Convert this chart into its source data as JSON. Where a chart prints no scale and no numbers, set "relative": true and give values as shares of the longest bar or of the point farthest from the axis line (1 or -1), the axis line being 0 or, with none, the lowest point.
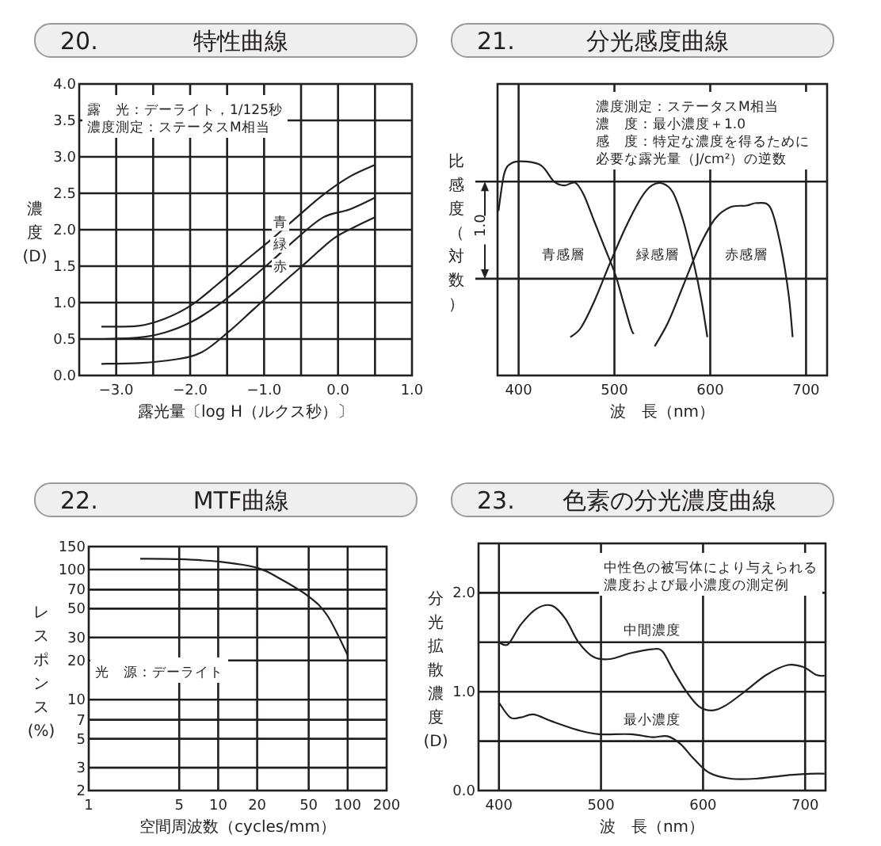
{
  "chart_data": [
    {
      "type": "line",
      "title": "20.　　　　特性曲線",
      "xlabel": "露光量〔log H（ルクス秒）〕",
      "ylabel": "濃度(D)",
      "xlim": [
        -3.5,
        1.0
      ],
      "xticks": [
        {
          "value": -3,
          "label": "−3.0"
        },
        {
          "value": -2.5,
          "label": null
        },
        {
          "value": -2,
          "label": "−2.0"
        },
        {
          "value": -1.5,
          "label": null
        },
        {
          "value": -1,
          "label": "−1.0"
        },
        {
          "value": -0.5,
          "label": null
        },
        {
          "value": 0,
          "label": "0.0"
        },
        {
          "value": 0.5,
          "label": null
        },
        {
          "value": 1,
          "label": "1.0"
        }
      ],
      "ylim": [
        0,
        4
      ],
      "yticks": [
        {
          "value": 0,
          "label": "0.0"
        },
        0.5,
        {
          "value": 1,
          "label": "1.0"
        },
        1.5,
        {
          "value": 2,
          "label": "2.0"
        },
        2.5,
        {
          "value": 3,
          "label": "3.0"
        },
        3.5,
        {
          "value": 4,
          "label": "4.0"
        }
      ],
      "grid": true,
      "annotations": [
        "露　光：デーライト，1/125秒",
        "濃度測定：ステータスM相当"
      ],
      "series": [
        {
          "name": "青",
          "color": "#231f20",
          "x": [
            -3.2,
            -2.7,
            -2.34,
            -1.99,
            -1.63,
            -1.27,
            -0.91,
            -0.56,
            -0.2,
            0.16,
            0.5
          ],
          "values": [
            0.67,
            0.68,
            0.78,
            0.96,
            1.25,
            1.56,
            1.86,
            2.17,
            2.48,
            2.73,
            2.89
          ]
        },
        {
          "name": "緑",
          "color": "#231f20",
          "x": [
            -3.2,
            -2.7,
            -2.34,
            -1.99,
            -1.63,
            -1.27,
            -0.91,
            -0.56,
            -0.2,
            0.16,
            0.5
          ],
          "values": [
            0.5,
            0.52,
            0.59,
            0.73,
            0.96,
            1.25,
            1.56,
            1.88,
            2.17,
            2.28,
            2.44
          ]
        },
        {
          "name": "赤",
          "color": "#231f20",
          "x": [
            -3.2,
            -2.7,
            -2.2,
            -1.84,
            -1.49,
            -1.13,
            -0.77,
            -0.41,
            -0.06,
            0.23,
            0.5
          ],
          "values": [
            0.16,
            0.17,
            0.22,
            0.32,
            0.59,
            0.92,
            1.25,
            1.57,
            1.88,
            2.04,
            2.17
          ]
        }
      ]
    },
    {
      "type": "line",
      "title": "21.　　　分光感度曲線",
      "xlabel": "波　長（nm）",
      "ylabel": "比感度（対数）",
      "relative": true,
      "xlim": [
        378,
        722
      ],
      "xticks": [
        400,
        500,
        600,
        700
      ],
      "grid": "x",
      "ref_lines": [
        {
          "axis": "y",
          "value": 0.452
        },
        {
          "axis": "y",
          "value": 0.906
        }
      ],
      "annotations": [
        "濃度測定：ステータスM相当",
        "濃　度：最小濃度＋1.0",
        "感　度：特定な濃度を得るために必要な露光量（J/cm²）の逆数",
        "1.0"
      ],
      "series": [
        {
          "name": "青感層",
          "color": "#231f20",
          "x": [
            379,
            385,
            393,
            407,
            424,
            437,
            448,
            459,
            468,
            479,
            490,
            501,
            509,
            517,
            520
          ],
          "values": [
            0.769,
            0.943,
            0.993,
            1.0,
            0.98,
            0.906,
            0.888,
            0.901,
            0.844,
            0.72,
            0.596,
            0.471,
            0.347,
            0.223,
            0.194
          ]
        },
        {
          "name": "緑感層",
          "color": "#231f20",
          "x": [
            454,
            465,
            479,
            495,
            512,
            528,
            539,
            550,
            561,
            572,
            583,
            591,
            597
          ],
          "values": [
            0.179,
            0.223,
            0.347,
            0.521,
            0.695,
            0.831,
            0.888,
            0.898,
            0.856,
            0.72,
            0.521,
            0.347,
            0.179
          ]
        },
        {
          "name": "赤感層",
          "color": "#231f20",
          "x": [
            542,
            556,
            572,
            588,
            605,
            621,
            638,
            649,
            663,
            674,
            682,
            686
          ],
          "values": [
            0.136,
            0.248,
            0.422,
            0.596,
            0.732,
            0.787,
            0.794,
            0.806,
            0.782,
            0.596,
            0.372,
            0.179
          ]
        }
      ]
    },
    {
      "type": "line",
      "title": "22.　　　　MTF曲線",
      "xlabel": "空間周波数（cycles/mm）",
      "ylabel": "レスポンス(%)",
      "log": "xy",
      "xlim": [
        1,
        200
      ],
      "xticks": [
        1,
        5,
        10,
        20,
        50,
        100,
        200
      ],
      "ylim": [
        2,
        150
      ],
      "yticks": [
        2,
        3,
        5,
        7,
        10,
        20,
        30,
        50,
        70,
        100,
        150
      ],
      "grid": true,
      "annotations": [
        "光　源：デーライト"
      ],
      "series": [
        {
          "color": "#231f20",
          "x": [
            2.5,
            5,
            10,
            20,
            30,
            50,
            70,
            100
          ],
          "values": [
            121,
            120,
            115,
            103,
            85,
            62,
            44,
            22
          ]
        }
      ]
    },
    {
      "type": "line",
      "title": "23.　　色素の分光濃度曲線",
      "xlabel": "波　長（nm）",
      "ylabel": "分光拡散濃度(D)",
      "xlim": [
        380,
        720
      ],
      "xticks": [
        400,
        500,
        600,
        700
      ],
      "ylim": [
        0,
        2.5
      ],
      "yticks": [
        {
          "value": 0,
          "label": "0.0"
        },
        {
          "value": 0.5,
          "label": null
        },
        {
          "value": 1,
          "label": "1.0"
        },
        {
          "value": 1.5,
          "label": null
        },
        {
          "value": 2,
          "label": "2.0"
        }
      ],
      "grid": true,
      "annotations": [
        "中性色の被写体により与えられる濃度および最小濃度の測定例"
      ],
      "series": [
        {
          "name": "中間濃度",
          "color": "#231f20",
          "x": [
            400,
            409,
            421.5,
            437,
            452,
            465,
            478,
            493,
            509,
            529,
            550,
            560,
            570,
            583,
            596,
            609,
            622,
            642,
            662,
            683,
            698,
            711,
            719
          ],
          "values": [
            1.5,
            1.48,
            1.68,
            1.84,
            1.87,
            1.74,
            1.5,
            1.35,
            1.33,
            1.39,
            1.43,
            1.41,
            1.23,
            1.01,
            0.85,
            0.81,
            0.86,
            1.01,
            1.17,
            1.27,
            1.25,
            1.17,
            1.16
          ]
        },
        {
          "name": "最小濃度",
          "color": "#231f20",
          "x": [
            400,
            411,
            421.5,
            434,
            452,
            478,
            498,
            529,
            550,
            565,
            578,
            591,
            606,
            627,
            652,
            678,
            704,
            719
          ],
          "values": [
            0.89,
            0.74,
            0.74,
            0.77,
            0.7,
            0.61,
            0.57,
            0.57,
            0.54,
            0.55,
            0.47,
            0.32,
            0.18,
            0.12,
            0.12,
            0.15,
            0.17,
            0.17
          ]
        }
      ]
    }
  ]
}
